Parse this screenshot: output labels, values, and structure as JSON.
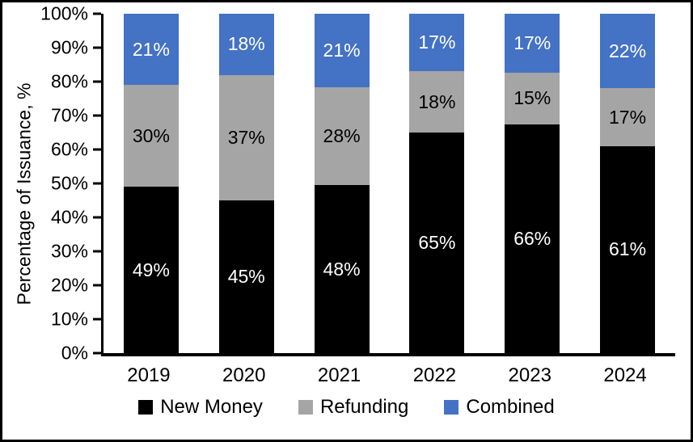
{
  "chart_data": {
    "type": "bar",
    "stacked": true,
    "title": "",
    "xlabel": "",
    "ylabel": "Percentage of Issuance, %",
    "ylim": [
      0,
      100
    ],
    "grid": false,
    "legend_position": "bottom",
    "data_label_suffix": "%",
    "axis_color": "#000000",
    "background_color": "#ffffff",
    "y_ticks": [
      "0%",
      "10%",
      "20%",
      "30%",
      "40%",
      "50%",
      "60%",
      "70%",
      "80%",
      "90%",
      "100%"
    ],
    "categories": [
      "2019",
      "2020",
      "2021",
      "2022",
      "2023",
      "2024"
    ],
    "series": [
      {
        "name": "New Money",
        "color": "#000000",
        "label_color": "#ffffff",
        "values": [
          49,
          45,
          48,
          65,
          66,
          61
        ]
      },
      {
        "name": "Refunding",
        "color": "#A5A5A5",
        "label_color": "#000000",
        "values": [
          30,
          37,
          28,
          18,
          15,
          17
        ]
      },
      {
        "name": "Combined",
        "color": "#4472C4",
        "label_color": "#ffffff",
        "values": [
          21,
          18,
          21,
          17,
          17,
          22
        ]
      }
    ]
  }
}
